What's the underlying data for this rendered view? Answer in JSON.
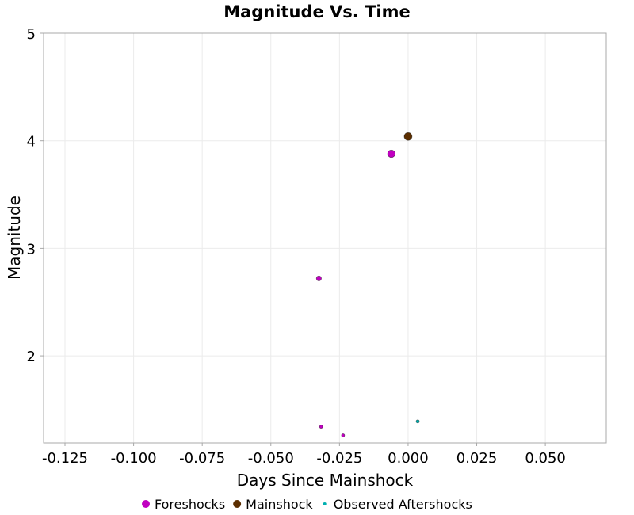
{
  "chart_data": {
    "type": "scatter",
    "title": "Magnitude Vs. Time",
    "xlabel": "Days Since Mainshock",
    "ylabel": "Magnitude",
    "xlim": [
      -0.1328,
      0.0722
    ],
    "ylim": [
      1.19,
      5
    ],
    "xticks": [
      -0.125,
      -0.1,
      -0.075,
      -0.05,
      -0.025,
      0.0,
      0.025,
      0.05
    ],
    "xtick_labels": [
      "-0.125",
      "-0.100",
      "-0.075",
      "-0.050",
      "-0.025",
      "0.000",
      "0.025",
      "0.050"
    ],
    "yticks": [
      2,
      3,
      4,
      5
    ],
    "ytick_labels": [
      "2",
      "3",
      "4",
      "5"
    ],
    "grid": true,
    "legend_position": "bottom",
    "series": [
      {
        "name": "Foreshocks",
        "color": "#c000c0",
        "points": [
          {
            "x": -0.0325,
            "y": 2.72
          },
          {
            "x": -0.0061,
            "y": 3.88
          },
          {
            "x": -0.0317,
            "y": 1.34
          },
          {
            "x": -0.0237,
            "y": 1.26
          }
        ]
      },
      {
        "name": "Mainshock",
        "color": "#5c2e00",
        "points": [
          {
            "x": 0.0,
            "y": 4.04
          }
        ]
      },
      {
        "name": "Observed Aftershocks",
        "color": "#00b0b0",
        "points": [
          {
            "x": 0.0035,
            "y": 1.39
          }
        ]
      }
    ]
  }
}
